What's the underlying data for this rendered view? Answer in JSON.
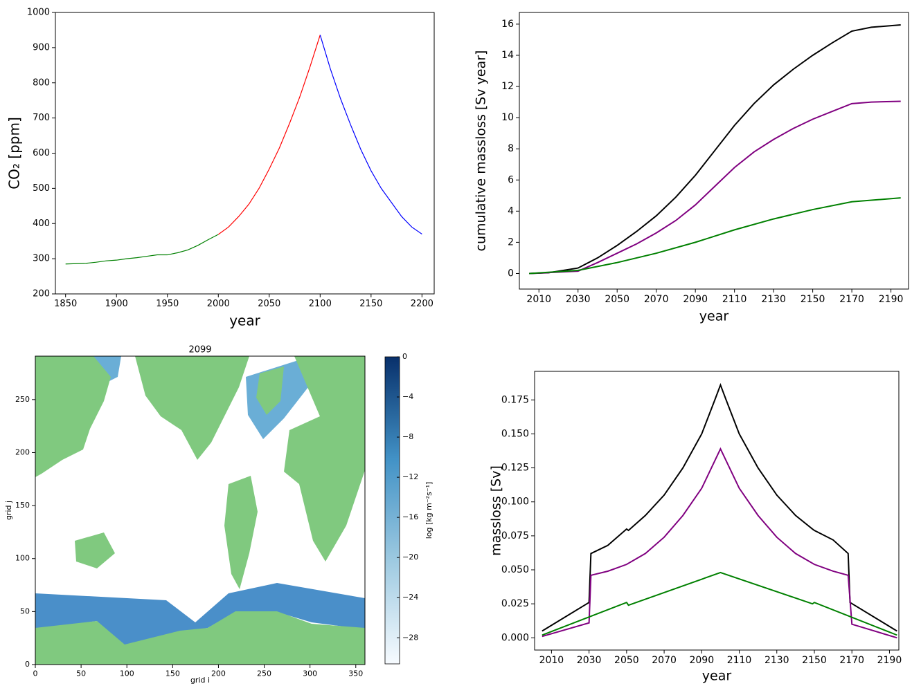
{
  "chart_data": [
    {
      "type": "line",
      "xlabel": "year",
      "ylabel": "CO₂ [ppm]",
      "xlim": [
        1840,
        2212
      ],
      "xticks": [
        1850,
        1900,
        1950,
        2000,
        2050,
        2100,
        2150,
        2200
      ],
      "ylim": [
        200,
        1000
      ],
      "yticks": [
        200,
        300,
        400,
        500,
        600,
        700,
        800,
        900,
        1000
      ],
      "series": [
        {
          "color": "#008000",
          "x": [
            1850,
            1870,
            1880,
            1890,
            1900,
            1910,
            1920,
            1930,
            1940,
            1950,
            1960,
            1970,
            1980,
            1990,
            2000
          ],
          "values": [
            285,
            287,
            290,
            294,
            296,
            300,
            303,
            307,
            311,
            311,
            317,
            325,
            338,
            354,
            369
          ]
        },
        {
          "color": "#ff0000",
          "x": [
            2000,
            2010,
            2020,
            2030,
            2040,
            2050,
            2060,
            2070,
            2080,
            2090,
            2100
          ],
          "values": [
            369,
            390,
            420,
            455,
            500,
            555,
            615,
            685,
            760,
            845,
            936
          ]
        },
        {
          "color": "#0000ff",
          "x": [
            2100,
            2110,
            2120,
            2130,
            2140,
            2150,
            2160,
            2170,
            2180,
            2190,
            2200
          ],
          "values": [
            936,
            840,
            755,
            680,
            610,
            550,
            500,
            460,
            420,
            390,
            370
          ]
        }
      ]
    },
    {
      "type": "line",
      "xlabel": "year",
      "ylabel": "cumulative massloss [Sv year]",
      "xlim": [
        2000,
        2199
      ],
      "xticks": [
        2010,
        2030,
        2050,
        2070,
        2090,
        2110,
        2130,
        2150,
        2170,
        2190
      ],
      "ylim": [
        -1,
        16.75
      ],
      "yticks": [
        0,
        2,
        4,
        6,
        8,
        10,
        12,
        14,
        16
      ],
      "series": [
        {
          "color": "#000000",
          "x": [
            2005,
            2015,
            2030,
            2040,
            2050,
            2060,
            2070,
            2080,
            2090,
            2100,
            2110,
            2120,
            2130,
            2140,
            2150,
            2160,
            2170,
            2180,
            2195
          ],
          "values": [
            0,
            0.05,
            0.35,
            1.0,
            1.8,
            2.7,
            3.7,
            4.9,
            6.3,
            7.9,
            9.5,
            10.9,
            12.1,
            13.1,
            14.0,
            14.8,
            15.55,
            15.8,
            15.95
          ]
        },
        {
          "color": "#800080",
          "x": [
            2005,
            2030,
            2040,
            2050,
            2060,
            2070,
            2080,
            2090,
            2100,
            2110,
            2120,
            2130,
            2140,
            2150,
            2160,
            2170,
            2180,
            2195
          ],
          "values": [
            0,
            0.15,
            0.7,
            1.3,
            1.9,
            2.6,
            3.4,
            4.4,
            5.6,
            6.8,
            7.8,
            8.6,
            9.3,
            9.9,
            10.4,
            10.9,
            11.0,
            11.05
          ]
        },
        {
          "color": "#008000",
          "x": [
            2005,
            2030,
            2050,
            2070,
            2090,
            2110,
            2130,
            2150,
            2170,
            2195
          ],
          "values": [
            0,
            0.2,
            0.7,
            1.3,
            2.0,
            2.8,
            3.5,
            4.1,
            4.6,
            4.85
          ]
        }
      ]
    },
    {
      "type": "map",
      "title": "2099",
      "xlabel": "grid i",
      "ylabel": "grid j",
      "xlim": [
        0,
        360
      ],
      "xticks": [
        0,
        50,
        100,
        150,
        200,
        250,
        300,
        350
      ],
      "ylim": [
        0,
        291
      ],
      "yticks": [
        0,
        50,
        100,
        150,
        200,
        250
      ],
      "colorbar": {
        "label": "log [kg m⁻²s⁻¹]",
        "ylim": [
          -30.6,
          0
        ],
        "colors": [
          "#f7fbff",
          "#9ecae1",
          "#4292c6",
          "#08306b"
        ],
        "yticks": [
          {
            "value": -28,
            "label": "−28"
          },
          {
            "value": -24,
            "label": "−24"
          },
          {
            "value": -20,
            "label": "−20"
          },
          {
            "value": -16,
            "label": "−16"
          },
          {
            "value": -12,
            "label": "−12"
          },
          {
            "value": -8,
            "label": "−8"
          },
          {
            "value": -4,
            "label": "−4"
          },
          0
        ]
      }
    },
    {
      "type": "line",
      "xlabel": "year",
      "ylabel": "massloss [Sv]",
      "xlim": [
        2001,
        2195
      ],
      "xticks": [
        2010,
        2030,
        2050,
        2070,
        2090,
        2110,
        2130,
        2150,
        2170,
        2190
      ],
      "ylim": [
        -0.009,
        0.196
      ],
      "yticks": [
        {
          "value": 0,
          "label": "0.000"
        },
        {
          "value": 0.025,
          "label": "0.025"
        },
        {
          "value": 0.05,
          "label": "0.050"
        },
        {
          "value": 0.075,
          "label": "0.075"
        },
        {
          "value": 0.1,
          "label": "0.100"
        },
        {
          "value": 0.125,
          "label": "0.125"
        },
        {
          "value": 0.15,
          "label": "0.150"
        },
        {
          "value": 0.175,
          "label": "0.175"
        }
      ],
      "series": [
        {
          "color": "#000000",
          "x": [
            2005,
            2030,
            2031,
            2040,
            2050,
            2051,
            2060,
            2070,
            2080,
            2090,
            2097,
            2100,
            2103,
            2110,
            2120,
            2130,
            2140,
            2149,
            2150,
            2160,
            2168,
            2169,
            2194
          ],
          "values": [
            0.005,
            0.026,
            0.062,
            0.068,
            0.08,
            0.079,
            0.09,
            0.105,
            0.125,
            0.15,
            0.175,
            0.186,
            0.175,
            0.15,
            0.125,
            0.105,
            0.09,
            0.08,
            0.079,
            0.072,
            0.062,
            0.026,
            0.005
          ]
        },
        {
          "color": "#800080",
          "x": [
            2005,
            2030,
            2031,
            2040,
            2050,
            2060,
            2070,
            2080,
            2090,
            2100,
            2110,
            2120,
            2130,
            2140,
            2150,
            2160,
            2168,
            2170,
            2194
          ],
          "values": [
            0.001,
            0.011,
            0.046,
            0.049,
            0.054,
            0.062,
            0.074,
            0.09,
            0.11,
            0.139,
            0.11,
            0.09,
            0.074,
            0.062,
            0.054,
            0.049,
            0.046,
            0.01,
            0
          ]
        },
        {
          "color": "#008000",
          "x": [
            2005,
            2050,
            2051,
            2100,
            2149,
            2150,
            2194
          ],
          "values": [
            0.002,
            0.026,
            0.024,
            0.048,
            0.025,
            0.026,
            0.002
          ]
        }
      ]
    }
  ]
}
